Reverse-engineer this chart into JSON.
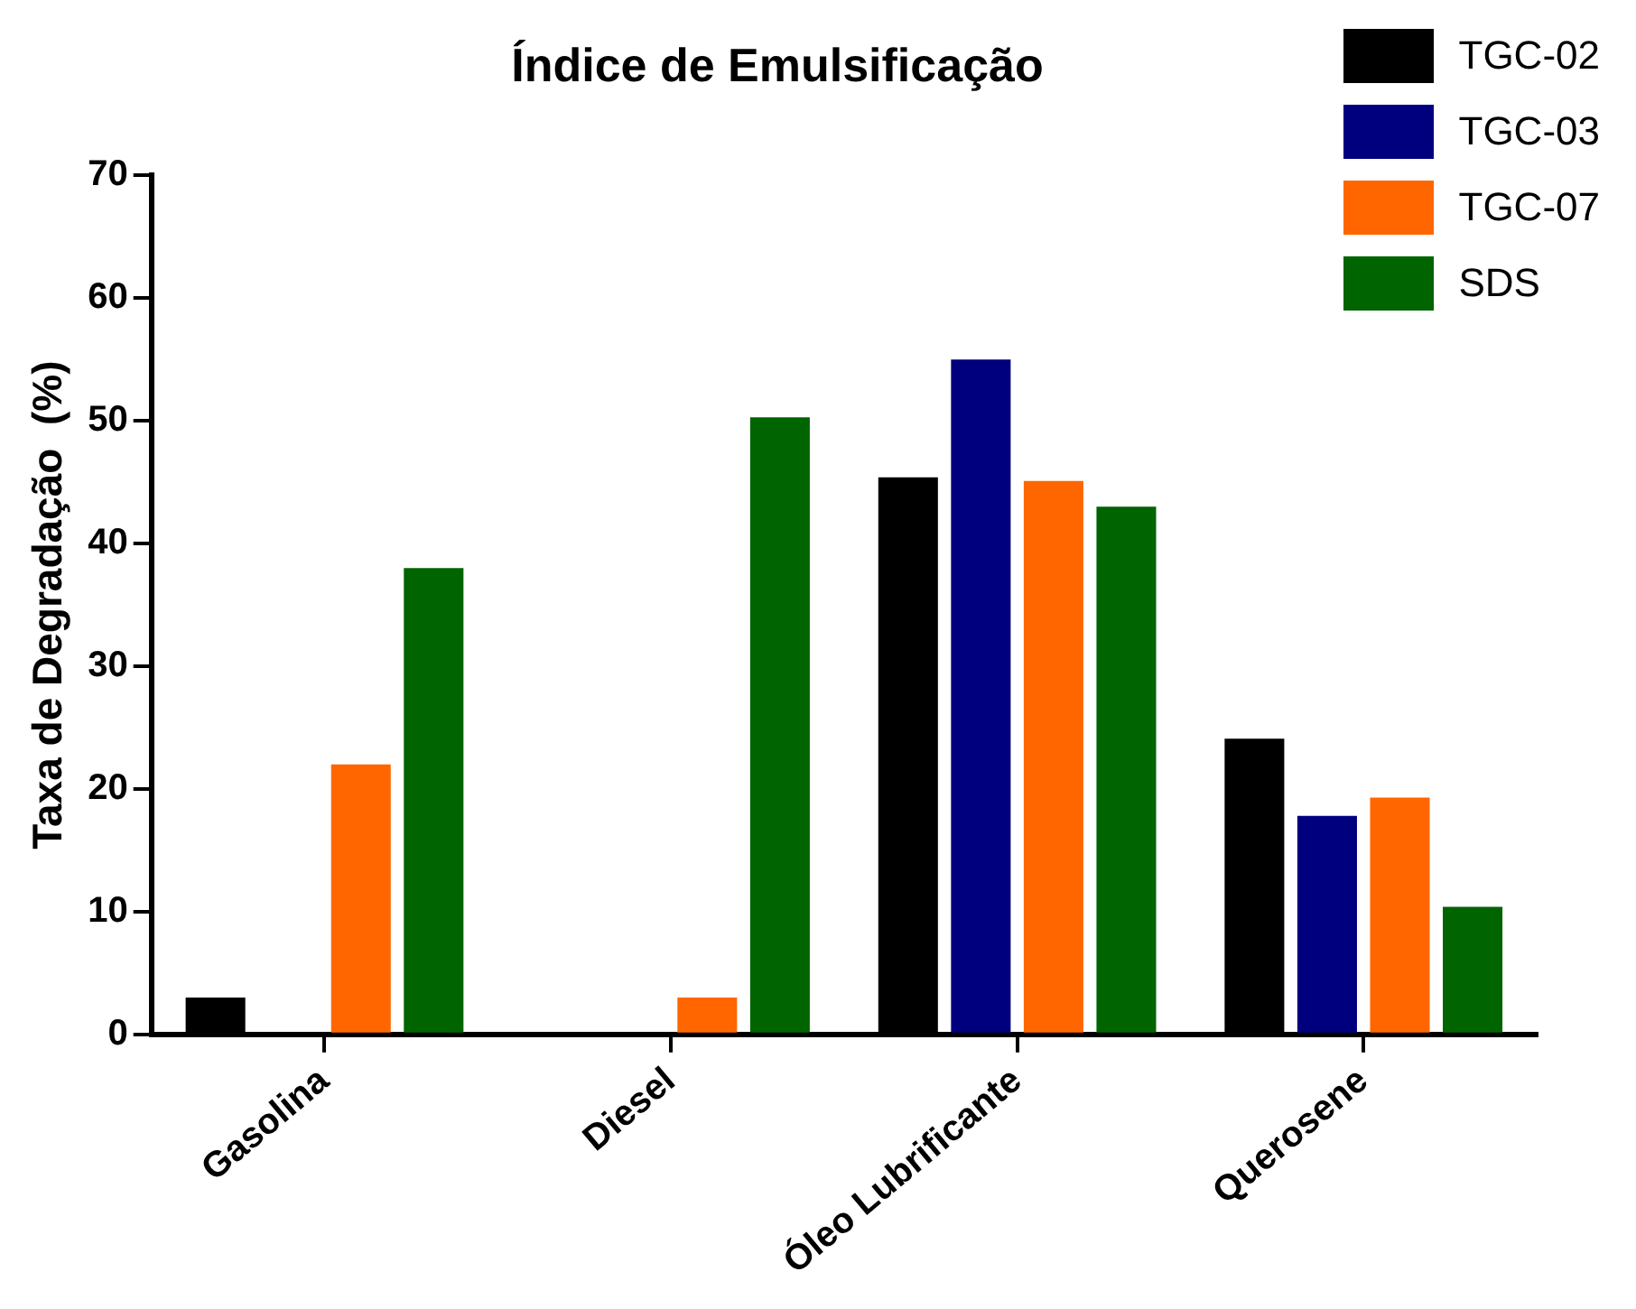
{
  "chart_data": {
    "type": "bar",
    "title": "Índice de Emulsificação",
    "ylabel": "Taxa de Degradação  (%)",
    "categories": [
      "Gasolina",
      "Diesel",
      "Óleo Lubrificante",
      "Querosene"
    ],
    "series": [
      {
        "name": "TGC-02",
        "color": "#000000",
        "values": [
          3,
          0,
          45.4,
          24.1
        ]
      },
      {
        "name": "TGC-03",
        "color": "#00007f",
        "values": [
          0,
          0,
          55,
          17.8
        ]
      },
      {
        "name": "TGC-07",
        "color": "#ff6600",
        "values": [
          22,
          3,
          45.1,
          19.3
        ]
      },
      {
        "name": "SDS",
        "color": "#006400",
        "values": [
          38,
          50.3,
          43,
          10.4
        ]
      }
    ],
    "ylim": [
      0,
      70
    ],
    "yticks": [
      0,
      10,
      20,
      30,
      40,
      50,
      60,
      70
    ],
    "grid": false,
    "legend": "top right"
  }
}
